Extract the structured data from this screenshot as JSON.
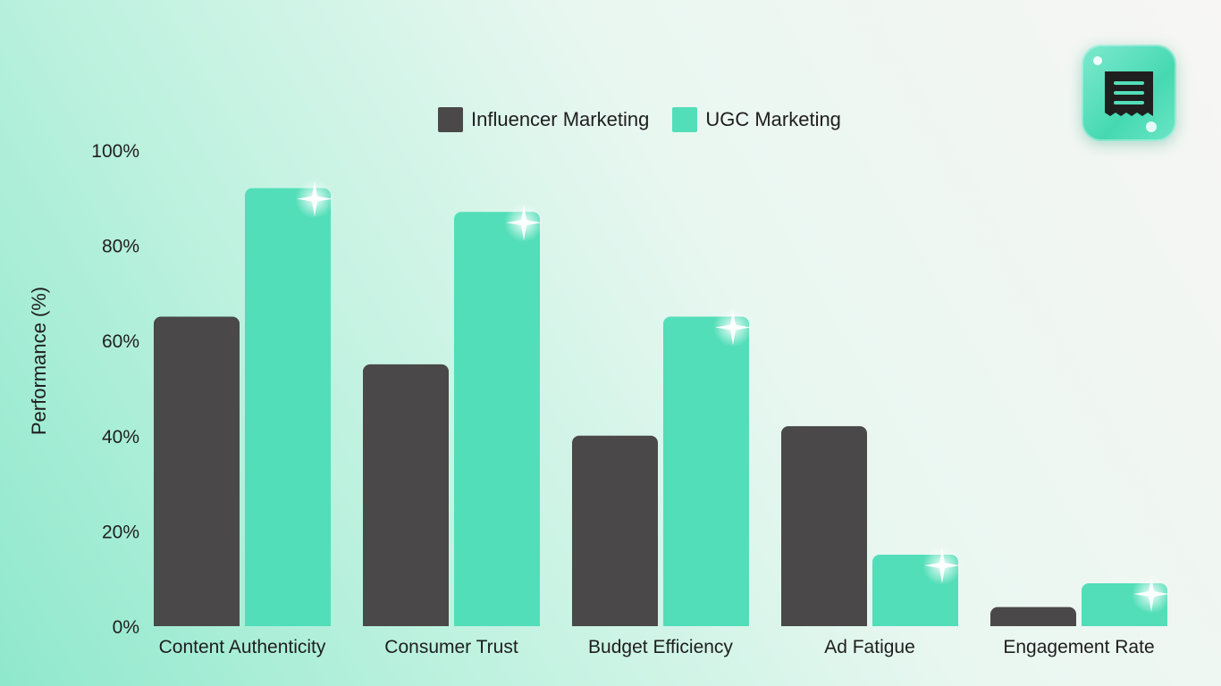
{
  "chart_data": {
    "type": "bar",
    "categories": [
      "Content Authenticity",
      "Consumer Trust",
      "Budget Efficiency",
      "Ad Fatigue",
      "Engagement Rate"
    ],
    "series": [
      {
        "name": "Influencer Marketing",
        "values": [
          65,
          55,
          40,
          42,
          4
        ],
        "color": "#4a4849"
      },
      {
        "name": "UGC Marketing",
        "values": [
          92,
          87,
          65,
          15,
          9
        ],
        "color": "#52deb8"
      }
    ],
    "ylabel": "Performance (%)",
    "xlabel": "",
    "ylim": [
      0,
      100
    ],
    "yticks": [
      "0%",
      "20%",
      "40%",
      "60%",
      "80%",
      "100%"
    ],
    "grid": false,
    "legend_position": "top-center"
  },
  "logo": {
    "icon": "receipt-icon"
  }
}
